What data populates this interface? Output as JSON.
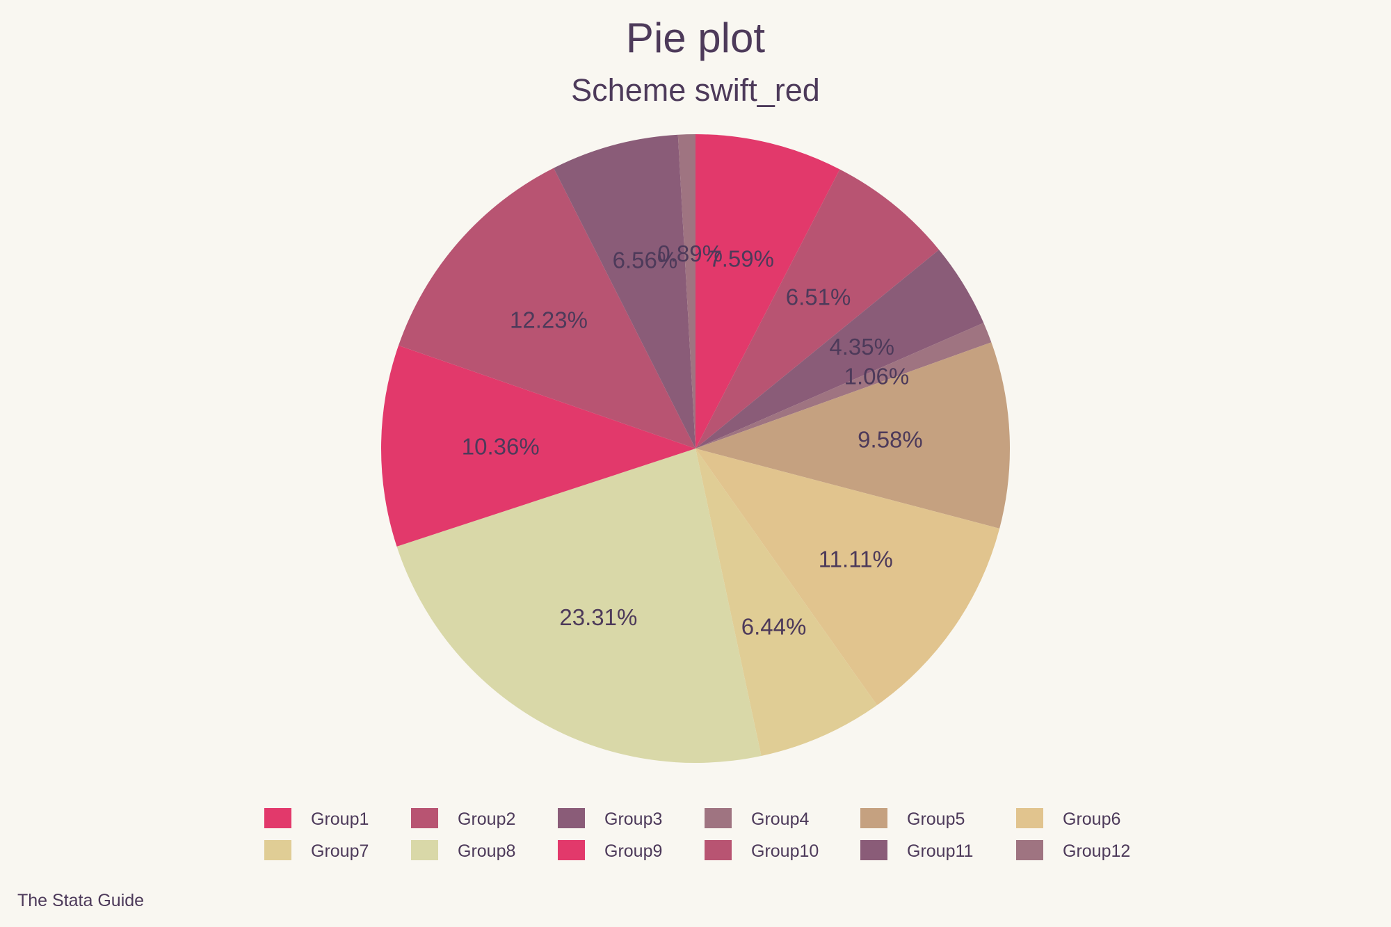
{
  "chart_data": {
    "type": "pie",
    "title": "Pie plot",
    "subtitle": "Scheme swift_red",
    "note": "The Stata Guide",
    "legend_position": "bottom",
    "slices": [
      {
        "name": "Group1",
        "percent": 7.59,
        "label": "7.59%",
        "color": "#e2396b"
      },
      {
        "name": "Group2",
        "percent": 6.51,
        "label": "6.51%",
        "color": "#b85472"
      },
      {
        "name": "Group3",
        "percent": 4.35,
        "label": "4.35%",
        "color": "#8a5c78"
      },
      {
        "name": "Group4",
        "percent": 1.06,
        "label": "1.06%",
        "color": "#9f7481"
      },
      {
        "name": "Group5",
        "percent": 9.58,
        "label": "9.58%",
        "color": "#c5a180"
      },
      {
        "name": "Group6",
        "percent": 11.11,
        "label": "11.11%",
        "color": "#e1c48e"
      },
      {
        "name": "Group7",
        "percent": 6.44,
        "label": "6.44%",
        "color": "#e0cd95"
      },
      {
        "name": "Group8",
        "percent": 23.31,
        "label": "23.31%",
        "color": "#d9d8a8"
      },
      {
        "name": "Group9",
        "percent": 10.36,
        "label": "10.36%",
        "color": "#e2396b"
      },
      {
        "name": "Group10",
        "percent": 12.23,
        "label": "12.23%",
        "color": "#b85472"
      },
      {
        "name": "Group11",
        "percent": 6.56,
        "label": "6.56%",
        "color": "#8a5c78"
      },
      {
        "name": "Group12",
        "percent": 0.89,
        "label": "0.89%",
        "color": "#9f7481"
      }
    ]
  }
}
